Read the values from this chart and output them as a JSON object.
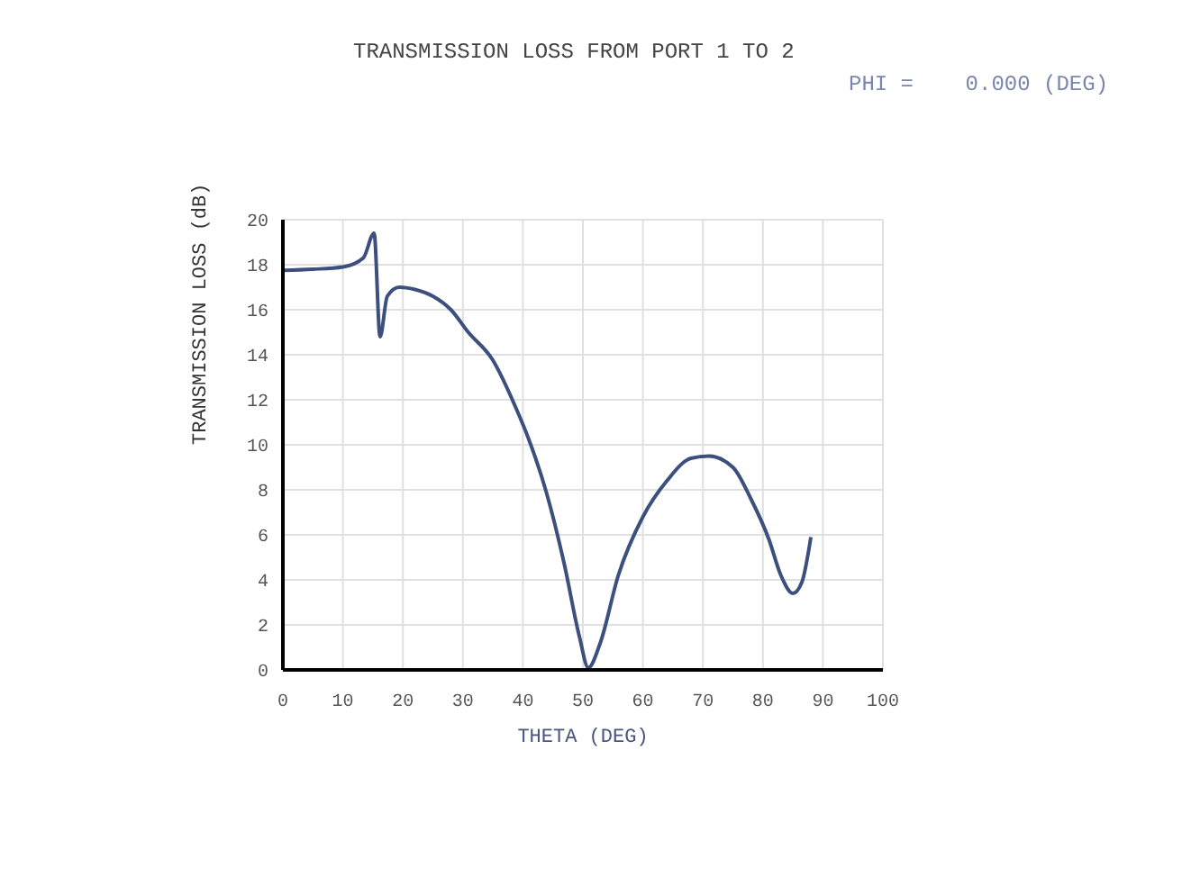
{
  "chart_data": {
    "type": "line",
    "title": "TRANSMISSION LOSS FROM PORT 1 TO 2",
    "annotations": [
      "PHI =    0.000 (DEG)"
    ],
    "xlabel": "THETA (DEG)",
    "ylabel": "TRANSMISSION LOSS (dB)",
    "x": [
      0,
      5,
      10,
      13.4,
      15.2,
      16.2,
      17.4,
      19.4,
      22,
      25,
      28,
      30.9,
      34.9,
      38.9,
      40.9,
      43.9,
      46.9,
      49.4,
      50.9,
      52.9,
      55.9,
      60,
      64,
      68,
      71,
      75,
      78,
      81,
      83,
      85,
      86.5,
      88
    ],
    "series": [
      {
        "color": "#3d4f7c",
        "values": [
          17.75,
          17.8,
          17.9,
          18.3,
          19.4,
          14.8,
          16.6,
          17,
          16.9,
          16.6,
          16,
          15,
          13.8,
          11.6,
          10.3,
          7.9,
          4.7,
          1.5,
          0.1,
          1.2,
          4.2,
          6.8,
          8.4,
          9.4,
          9.5,
          9,
          7.6,
          5.8,
          4.2,
          3.4,
          3.9,
          5.9
        ]
      }
    ],
    "xlim": [
      0,
      100
    ],
    "xticks": [
      0,
      10,
      20,
      30,
      40,
      50,
      60,
      70,
      80,
      90,
      100
    ],
    "ylim": [
      0,
      20
    ],
    "yticks": [
      0,
      2,
      4,
      6,
      8,
      10,
      12,
      14,
      16,
      18,
      20
    ],
    "grid": true,
    "marker": "none",
    "line_style": "solid",
    "legend": false
  }
}
